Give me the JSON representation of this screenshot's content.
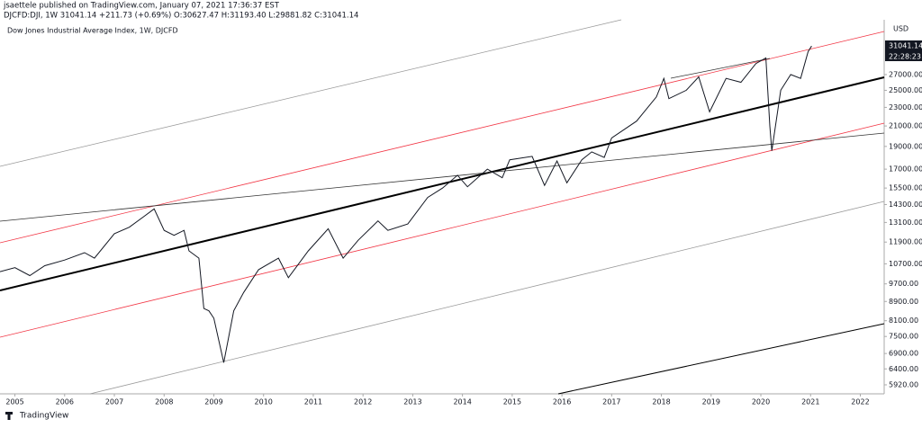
{
  "publisher_line": "jsaettele published on TradingView.com, January 07, 2021 17:36:37 EST",
  "symbol_line": "DJCFD:DJI, 1W  31041.14  +211.73 (+0.69%)  O:30627.47  H:31193.40  L:29881.82  C:31041.14",
  "footer_brand": "TradingView",
  "chart_data": {
    "type": "line",
    "title": "Dow Jones Industrial Average Index, 1W, DJCFD",
    "currency": "USD",
    "countdown": "22:28:23",
    "log_scale": true,
    "grid": false,
    "x": [
      2004.7,
      2005.0,
      2005.3,
      2005.6,
      2006.0,
      2006.4,
      2006.6,
      2007.0,
      2007.3,
      2007.6,
      2007.8,
      2008.0,
      2008.2,
      2008.4,
      2008.5,
      2008.7,
      2008.8,
      2008.9,
      2009.0,
      2009.2,
      2009.4,
      2009.6,
      2009.9,
      2010.3,
      2010.5,
      2010.9,
      2011.3,
      2011.6,
      2011.9,
      2012.3,
      2012.5,
      2012.9,
      2013.3,
      2013.6,
      2013.9,
      2014.1,
      2014.5,
      2014.8,
      2014.95,
      2015.4,
      2015.65,
      2015.9,
      2016.1,
      2016.4,
      2016.6,
      2016.85,
      2017.0,
      2017.5,
      2017.9,
      2018.05,
      2018.15,
      2018.5,
      2018.75,
      2018.97,
      2019.3,
      2019.6,
      2019.9,
      2020.1,
      2020.18,
      2020.22,
      2020.4,
      2020.6,
      2020.8,
      2020.95,
      2021.02
    ],
    "series": [
      {
        "name": "DJCFD:DJI",
        "color": "#131722",
        "values": [
          10300,
          10500,
          10100,
          10600,
          10900,
          11300,
          11000,
          12400,
          12800,
          13500,
          14000,
          12600,
          12300,
          12600,
          11400,
          11000,
          8600,
          8500,
          8200,
          6600,
          8500,
          9300,
          10400,
          11000,
          10000,
          11400,
          12700,
          11000,
          12000,
          13200,
          12600,
          13000,
          14800,
          15500,
          16500,
          15600,
          17000,
          16300,
          17800,
          18100,
          15700,
          17700,
          15900,
          17800,
          18500,
          18000,
          19800,
          21500,
          24200,
          26500,
          24000,
          25000,
          26700,
          22500,
          26500,
          26000,
          28500,
          29300,
          21000,
          18600,
          25000,
          27000,
          26500,
          30200,
          31041.14
        ]
      }
    ],
    "xlim": [
      2004.7,
      2022.48
    ],
    "xticks": [
      2005,
      2006,
      2007,
      2008,
      2009,
      2010,
      2011,
      2012,
      2013,
      2014,
      2015,
      2016,
      2017,
      2018,
      2019,
      2020,
      2021,
      2022
    ],
    "ylim": [
      5740,
      35300
    ],
    "yticks": [
      {
        "value": 27000,
        "label": "27000.00"
      },
      {
        "value": 25000,
        "label": "25000.00"
      },
      {
        "value": 23000,
        "label": "23000.00"
      },
      {
        "value": 21000,
        "label": "21000.00"
      },
      {
        "value": 19000,
        "label": "19000.00"
      },
      {
        "value": 17000,
        "label": "17000.00"
      },
      {
        "value": 15500,
        "label": "15500.00"
      },
      {
        "value": 14300,
        "label": "14300.00"
      },
      {
        "value": 13100,
        "label": "13100.00"
      },
      {
        "value": 11900,
        "label": "11900.00"
      },
      {
        "value": 10700,
        "label": "10700.00"
      },
      {
        "value": 9700,
        "label": "9700.00"
      },
      {
        "value": 8900,
        "label": "8900.00"
      },
      {
        "value": 8100,
        "label": "8100.00"
      },
      {
        "value": 7500,
        "label": "7500.00"
      },
      {
        "value": 6900,
        "label": "6900.00"
      },
      {
        "value": 6400,
        "label": "6400.00"
      },
      {
        "value": 5920,
        "label": "5920.00"
      }
    ]
  }
}
